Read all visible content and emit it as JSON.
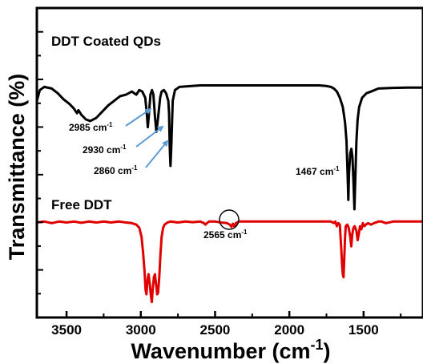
{
  "chart_data": {
    "type": "line",
    "xlabel": "Wavenumber (cm",
    "xlabel_sup": "-1",
    "xlabel_close": ")",
    "ylabel": "Transmittance (%)",
    "xlim": [
      3700,
      1100
    ],
    "x_reversed": true,
    "x_ticks": [
      3500,
      3000,
      2500,
      2000,
      1500
    ],
    "y_ticks_visible": false,
    "grid": false,
    "series": [
      {
        "name": "DDT Coated QDs",
        "color": "#000000",
        "points": [
          [
            3700,
            0.7
          ],
          [
            3680,
            0.735
          ],
          [
            3650,
            0.745
          ],
          [
            3600,
            0.74
          ],
          [
            3560,
            0.725
          ],
          [
            3520,
            0.705
          ],
          [
            3480,
            0.69
          ],
          [
            3450,
            0.675
          ],
          [
            3430,
            0.66
          ],
          [
            3420,
            0.67
          ],
          [
            3400,
            0.655
          ],
          [
            3370,
            0.64
          ],
          [
            3340,
            0.635
          ],
          [
            3300,
            0.645
          ],
          [
            3260,
            0.665
          ],
          [
            3220,
            0.685
          ],
          [
            3180,
            0.7
          ],
          [
            3140,
            0.715
          ],
          [
            3100,
            0.72
          ],
          [
            3060,
            0.73
          ],
          [
            3030,
            0.72
          ],
          [
            3010,
            0.735
          ],
          [
            2990,
            0.73
          ],
          [
            2970,
            0.71
          ],
          [
            2960,
            0.66
          ],
          [
            2953,
            0.615
          ],
          [
            2945,
            0.66
          ],
          [
            2935,
            0.72
          ],
          [
            2925,
            0.735
          ],
          [
            2915,
            0.72
          ],
          [
            2905,
            0.65
          ],
          [
            2895,
            0.6
          ],
          [
            2885,
            0.64
          ],
          [
            2870,
            0.71
          ],
          [
            2860,
            0.73
          ],
          [
            2845,
            0.735
          ],
          [
            2830,
            0.725
          ],
          [
            2815,
            0.7
          ],
          [
            2810,
            0.66
          ],
          [
            2805,
            0.55
          ],
          [
            2800,
            0.49
          ],
          [
            2795,
            0.55
          ],
          [
            2785,
            0.7
          ],
          [
            2770,
            0.735
          ],
          [
            2740,
            0.745
          ],
          [
            2600,
            0.75
          ],
          [
            2400,
            0.75
          ],
          [
            2200,
            0.75
          ],
          [
            2000,
            0.75
          ],
          [
            1900,
            0.75
          ],
          [
            1800,
            0.75
          ],
          [
            1750,
            0.748
          ],
          [
            1720,
            0.745
          ],
          [
            1700,
            0.74
          ],
          [
            1680,
            0.73
          ],
          [
            1660,
            0.71
          ],
          [
            1640,
            0.68
          ],
          [
            1625,
            0.63
          ],
          [
            1615,
            0.57
          ],
          [
            1608,
            0.47
          ],
          [
            1603,
            0.38
          ],
          [
            1598,
            0.47
          ],
          [
            1590,
            0.53
          ],
          [
            1582,
            0.545
          ],
          [
            1575,
            0.52
          ],
          [
            1568,
            0.44
          ],
          [
            1562,
            0.35
          ],
          [
            1556,
            0.45
          ],
          [
            1548,
            0.57
          ],
          [
            1540,
            0.64
          ],
          [
            1530,
            0.68
          ],
          [
            1510,
            0.71
          ],
          [
            1480,
            0.725
          ],
          [
            1450,
            0.73
          ],
          [
            1400,
            0.74
          ],
          [
            1300,
            0.742
          ],
          [
            1200,
            0.743
          ],
          [
            1100,
            0.743
          ]
        ]
      },
      {
        "name": "Free DDT",
        "color": "#e00000",
        "points": [
          [
            3700,
            0.307
          ],
          [
            3650,
            0.31
          ],
          [
            3600,
            0.305
          ],
          [
            3550,
            0.31
          ],
          [
            3500,
            0.307
          ],
          [
            3450,
            0.31
          ],
          [
            3400,
            0.306
          ],
          [
            3350,
            0.31
          ],
          [
            3300,
            0.307
          ],
          [
            3250,
            0.31
          ],
          [
            3200,
            0.307
          ],
          [
            3150,
            0.31
          ],
          [
            3100,
            0.307
          ],
          [
            3060,
            0.305
          ],
          [
            3030,
            0.3
          ],
          [
            3010,
            0.29
          ],
          [
            2995,
            0.26
          ],
          [
            2985,
            0.21
          ],
          [
            2975,
            0.15
          ],
          [
            2968,
            0.09
          ],
          [
            2962,
            0.075
          ],
          [
            2955,
            0.12
          ],
          [
            2948,
            0.14
          ],
          [
            2940,
            0.11
          ],
          [
            2932,
            0.07
          ],
          [
            2926,
            0.05
          ],
          [
            2920,
            0.09
          ],
          [
            2912,
            0.13
          ],
          [
            2905,
            0.14
          ],
          [
            2898,
            0.11
          ],
          [
            2890,
            0.075
          ],
          [
            2884,
            0.08
          ],
          [
            2876,
            0.13
          ],
          [
            2868,
            0.2
          ],
          [
            2860,
            0.26
          ],
          [
            2850,
            0.29
          ],
          [
            2840,
            0.3
          ],
          [
            2820,
            0.307
          ],
          [
            2800,
            0.31
          ],
          [
            2750,
            0.307
          ],
          [
            2700,
            0.31
          ],
          [
            2650,
            0.308
          ],
          [
            2600,
            0.31
          ],
          [
            2575,
            0.305
          ],
          [
            2565,
            0.3
          ],
          [
            2555,
            0.305
          ],
          [
            2540,
            0.31
          ],
          [
            2500,
            0.31
          ],
          [
            2460,
            0.307
          ],
          [
            2420,
            0.305
          ],
          [
            2400,
            0.3
          ],
          [
            2390,
            0.293
          ],
          [
            2380,
            0.303
          ],
          [
            2370,
            0.294
          ],
          [
            2360,
            0.305
          ],
          [
            2340,
            0.31
          ],
          [
            2300,
            0.31
          ],
          [
            2200,
            0.31
          ],
          [
            2100,
            0.31
          ],
          [
            2000,
            0.31
          ],
          [
            1900,
            0.31
          ],
          [
            1800,
            0.31
          ],
          [
            1750,
            0.31
          ],
          [
            1720,
            0.31
          ],
          [
            1700,
            0.305
          ],
          [
            1690,
            0.31
          ],
          [
            1680,
            0.295
          ],
          [
            1670,
            0.305
          ],
          [
            1660,
            0.3
          ],
          [
            1655,
            0.26
          ],
          [
            1650,
            0.22
          ],
          [
            1645,
            0.17
          ],
          [
            1640,
            0.14
          ],
          [
            1635,
            0.13
          ],
          [
            1630,
            0.19
          ],
          [
            1625,
            0.26
          ],
          [
            1620,
            0.295
          ],
          [
            1610,
            0.3
          ],
          [
            1600,
            0.29
          ],
          [
            1590,
            0.26
          ],
          [
            1583,
            0.23
          ],
          [
            1576,
            0.27
          ],
          [
            1568,
            0.29
          ],
          [
            1560,
            0.295
          ],
          [
            1548,
            0.28
          ],
          [
            1540,
            0.25
          ],
          [
            1532,
            0.27
          ],
          [
            1524,
            0.295
          ],
          [
            1515,
            0.285
          ],
          [
            1505,
            0.305
          ],
          [
            1495,
            0.295
          ],
          [
            1485,
            0.3
          ],
          [
            1470,
            0.305
          ],
          [
            1450,
            0.3
          ],
          [
            1430,
            0.305
          ],
          [
            1400,
            0.31
          ],
          [
            1380,
            0.31
          ],
          [
            1350,
            0.305
          ],
          [
            1300,
            0.31
          ],
          [
            1200,
            0.31
          ],
          [
            1100,
            0.31
          ]
        ]
      }
    ],
    "annotations": [
      {
        "label": "2985 cm",
        "sup": "-1"
      },
      {
        "label": "2930 cm",
        "sup": "-1"
      },
      {
        "label": "2860 cm",
        "sup": "-1"
      },
      {
        "label": "1467 cm",
        "sup": "-1"
      },
      {
        "label": "2565 cm",
        "sup": "-1"
      }
    ]
  }
}
